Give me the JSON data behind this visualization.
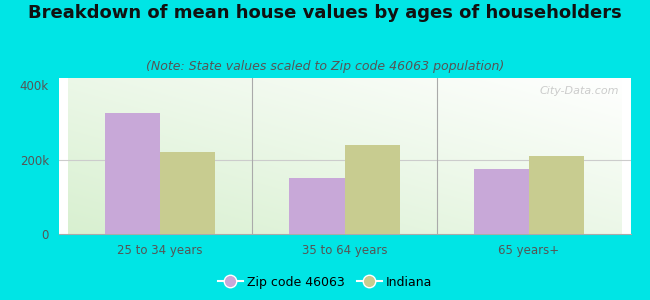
{
  "title": "Breakdown of mean house values by ages of householders",
  "subtitle": "(Note: State values scaled to Zip code 46063 population)",
  "categories": [
    "25 to 34 years",
    "35 to 64 years",
    "65 years+"
  ],
  "zip_values": [
    325000,
    150000,
    175000
  ],
  "indiana_values": [
    220000,
    240000,
    210000
  ],
  "zip_color": "#c8a8d8",
  "indiana_color": "#c8cc90",
  "background_color": "#00e5e5",
  "ylim": [
    0,
    420000
  ],
  "yticks": [
    0,
    200000,
    400000
  ],
  "ytick_labels": [
    "0",
    "200k",
    "400k"
  ],
  "legend_zip_label": "Zip code 46063",
  "legend_indiana_label": "Indiana",
  "bar_width": 0.3,
  "title_fontsize": 13,
  "subtitle_fontsize": 9,
  "watermark": "City-Data.com"
}
